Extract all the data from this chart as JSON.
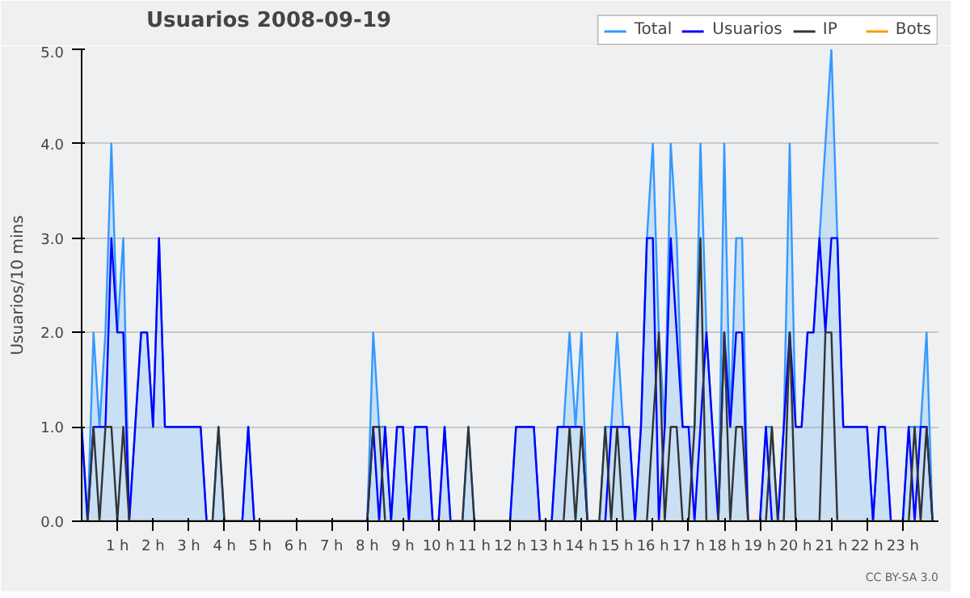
{
  "chart_data": {
    "type": "line",
    "title": "Usuarios  2008-09-19",
    "ylabel": "Usuarios/10 mins",
    "x": [
      0,
      0.167,
      0.333,
      0.5,
      0.667,
      0.833,
      1,
      1.167,
      1.333,
      1.5,
      1.667,
      1.833,
      2,
      2.167,
      2.333,
      2.5,
      2.667,
      2.833,
      3,
      3.167,
      3.333,
      3.5,
      3.667,
      3.833,
      4,
      4.167,
      4.333,
      4.5,
      4.667,
      4.833,
      5,
      5.167,
      5.333,
      5.5,
      5.667,
      5.833,
      6,
      6.167,
      6.333,
      6.5,
      6.667,
      6.833,
      7,
      7.167,
      7.333,
      7.5,
      7.667,
      7.833,
      8,
      8.167,
      8.333,
      8.5,
      8.667,
      8.833,
      9,
      9.167,
      9.333,
      9.5,
      9.667,
      9.833,
      10,
      10.167,
      10.333,
      10.5,
      10.667,
      10.833,
      11,
      11.167,
      11.333,
      11.5,
      11.667,
      11.833,
      12,
      12.167,
      12.333,
      12.5,
      12.667,
      12.833,
      13,
      13.167,
      13.333,
      13.5,
      13.667,
      13.833,
      14,
      14.167,
      14.333,
      14.5,
      14.667,
      14.833,
      15,
      15.167,
      15.333,
      15.5,
      15.667,
      15.833,
      16,
      16.167,
      16.333,
      16.5,
      16.667,
      16.833,
      17,
      17.167,
      17.333,
      17.5,
      17.667,
      17.833,
      18,
      18.167,
      18.333,
      18.5,
      18.667,
      18.833,
      19,
      19.167,
      19.333,
      19.5,
      19.667,
      19.833,
      20,
      20.167,
      20.333,
      20.5,
      20.667,
      20.833,
      21,
      21.167,
      21.333,
      21.5,
      21.667,
      21.833,
      22,
      22.167,
      22.333,
      22.5,
      22.667,
      22.833,
      23,
      23.167,
      23.333,
      23.5,
      23.667,
      23.833
    ],
    "series": [
      {
        "name": "Total",
        "type": "area",
        "color": "#3399ff",
        "values": [
          1,
          0,
          2,
          1,
          2,
          4,
          2,
          3,
          0,
          1,
          2,
          2,
          1,
          3,
          1,
          1,
          1,
          1,
          1,
          1,
          1,
          0,
          0,
          1,
          0,
          0,
          0,
          0,
          1,
          0,
          0,
          0,
          0,
          0,
          0,
          0,
          0,
          0,
          0,
          0,
          0,
          0,
          0,
          0,
          0,
          0,
          0,
          0,
          0,
          2,
          1,
          1,
          0,
          1,
          1,
          0,
          1,
          1,
          1,
          0,
          0,
          1,
          0,
          0,
          0,
          1,
          0,
          0,
          0,
          0,
          0,
          0,
          0,
          1,
          1,
          1,
          1,
          0,
          0,
          0,
          1,
          1,
          2,
          1,
          2,
          0,
          0,
          0,
          1,
          1,
          2,
          1,
          1,
          0,
          1,
          3,
          4,
          2,
          1,
          4,
          3,
          1,
          1,
          1,
          4,
          2,
          1,
          0,
          4,
          1,
          3,
          3,
          0,
          0,
          0,
          1,
          1,
          0,
          1,
          4,
          1,
          1,
          2,
          2,
          3,
          4,
          5,
          3,
          1,
          1,
          1,
          1,
          1,
          0,
          1,
          1,
          0,
          0,
          0,
          1,
          1,
          1,
          2,
          0
        ]
      },
      {
        "name": "Usuarios",
        "color": "#0000ff",
        "values": [
          1,
          0,
          1,
          1,
          1,
          3,
          2,
          2,
          0,
          1,
          2,
          2,
          1,
          3,
          1,
          1,
          1,
          1,
          1,
          1,
          1,
          0,
          0,
          0,
          0,
          0,
          0,
          0,
          1,
          0,
          0,
          0,
          0,
          0,
          0,
          0,
          0,
          0,
          0,
          0,
          0,
          0,
          0,
          0,
          0,
          0,
          0,
          0,
          0,
          1,
          0,
          1,
          0,
          1,
          1,
          0,
          1,
          1,
          1,
          0,
          0,
          1,
          0,
          0,
          0,
          0,
          0,
          0,
          0,
          0,
          0,
          0,
          0,
          1,
          1,
          1,
          1,
          0,
          0,
          0,
          1,
          1,
          1,
          1,
          1,
          0,
          0,
          0,
          0,
          1,
          1,
          1,
          1,
          0,
          1,
          3,
          3,
          0,
          1,
          3,
          2,
          1,
          1,
          0,
          1,
          2,
          1,
          0,
          2,
          1,
          2,
          2,
          0,
          0,
          0,
          1,
          0,
          0,
          1,
          2,
          1,
          1,
          2,
          2,
          3,
          2,
          3,
          3,
          1,
          1,
          1,
          1,
          1,
          0,
          1,
          1,
          0,
          0,
          0,
          1,
          0,
          1,
          1,
          0
        ]
      },
      {
        "name": "IP",
        "color": "#333333",
        "values": [
          0,
          0,
          1,
          0,
          1,
          1,
          0,
          1,
          0,
          0,
          0,
          0,
          0,
          0,
          0,
          0,
          0,
          0,
          0,
          0,
          0,
          0,
          0,
          1,
          0,
          0,
          0,
          0,
          0,
          0,
          0,
          0,
          0,
          0,
          0,
          0,
          0,
          0,
          0,
          0,
          0,
          0,
          0,
          0,
          0,
          0,
          0,
          0,
          0,
          1,
          1,
          0,
          0,
          0,
          0,
          0,
          0,
          0,
          0,
          0,
          0,
          0,
          0,
          0,
          0,
          1,
          0,
          0,
          0,
          0,
          0,
          0,
          0,
          0,
          0,
          0,
          0,
          0,
          0,
          0,
          0,
          0,
          1,
          0,
          1,
          0,
          0,
          0,
          1,
          0,
          1,
          0,
          0,
          0,
          0,
          0,
          1,
          2,
          0,
          1,
          1,
          0,
          0,
          1,
          3,
          0,
          0,
          0,
          2,
          0,
          1,
          1,
          0,
          0,
          0,
          0,
          1,
          0,
          0,
          2,
          0,
          0,
          0,
          0,
          0,
          2,
          2,
          0,
          0,
          0,
          0,
          0,
          0,
          0,
          0,
          0,
          0,
          0,
          0,
          0,
          1,
          0,
          1,
          0
        ]
      },
      {
        "name": "Bots",
        "color": "#ff9900",
        "values": [
          null,
          null,
          null,
          null,
          null,
          null,
          null,
          null,
          null,
          null,
          null,
          null,
          null,
          null,
          null,
          null,
          null,
          null,
          null,
          null,
          null,
          null,
          null,
          null,
          null,
          null,
          null,
          null,
          null,
          null,
          null,
          null,
          null,
          null,
          null,
          null,
          null,
          null,
          null,
          null,
          null,
          null,
          null,
          null,
          null,
          null,
          null,
          null,
          null,
          null,
          null,
          null,
          null,
          null,
          null,
          null,
          null,
          null,
          null,
          null,
          null,
          null,
          null,
          null,
          null,
          null,
          null,
          null,
          null,
          null,
          null,
          null,
          null,
          null,
          null,
          null,
          null,
          null,
          null,
          null,
          null,
          null,
          null,
          null,
          null,
          null,
          null,
          null,
          null,
          null,
          null,
          null,
          null,
          null,
          null,
          null,
          null,
          null,
          null,
          null,
          null,
          null,
          null,
          null,
          null,
          null,
          null,
          null,
          null,
          null,
          null,
          null,
          null,
          null,
          null,
          null,
          null,
          null,
          null,
          null,
          null,
          null,
          null,
          null,
          null,
          null,
          null,
          null,
          null,
          null,
          null,
          null,
          null,
          null,
          null,
          null,
          null,
          null,
          null,
          null,
          null,
          null,
          null,
          null
        ]
      }
    ],
    "xlim": [
      0,
      24
    ],
    "xticks": [
      {
        "value": 1,
        "label": "1 h"
      },
      {
        "value": 2,
        "label": "2 h"
      },
      {
        "value": 3,
        "label": "3 h"
      },
      {
        "value": 4,
        "label": "4 h"
      },
      {
        "value": 5,
        "label": "5 h"
      },
      {
        "value": 6,
        "label": "6 h"
      },
      {
        "value": 7,
        "label": "7 h"
      },
      {
        "value": 8,
        "label": "8 h"
      },
      {
        "value": 9,
        "label": "9 h"
      },
      {
        "value": 10,
        "label": "10 h"
      },
      {
        "value": 11,
        "label": "11 h"
      },
      {
        "value": 12,
        "label": "12 h"
      },
      {
        "value": 13,
        "label": "13 h"
      },
      {
        "value": 14,
        "label": "14 h"
      },
      {
        "value": 15,
        "label": "15 h"
      },
      {
        "value": 16,
        "label": "16 h"
      },
      {
        "value": 17,
        "label": "17 h"
      },
      {
        "value": 18,
        "label": "18 h"
      },
      {
        "value": 19,
        "label": "19 h"
      },
      {
        "value": 20,
        "label": "20 h"
      },
      {
        "value": 21,
        "label": "21 h"
      },
      {
        "value": 22,
        "label": "22 h"
      },
      {
        "value": 23,
        "label": "23 h"
      }
    ],
    "ylim": [
      0,
      5
    ],
    "yticks": [
      {
        "value": 0,
        "label": "0.0"
      },
      {
        "value": 1,
        "label": "1.0"
      },
      {
        "value": 2,
        "label": "2.0"
      },
      {
        "value": 3,
        "label": "3.0"
      },
      {
        "value": 4,
        "label": "4.0"
      },
      {
        "value": 5,
        "label": "5.0"
      }
    ],
    "grid": "y",
    "legend": "top right",
    "marker": "none",
    "line_style": "solid",
    "annotations": [
      "CC BY-SA 3.0"
    ]
  }
}
